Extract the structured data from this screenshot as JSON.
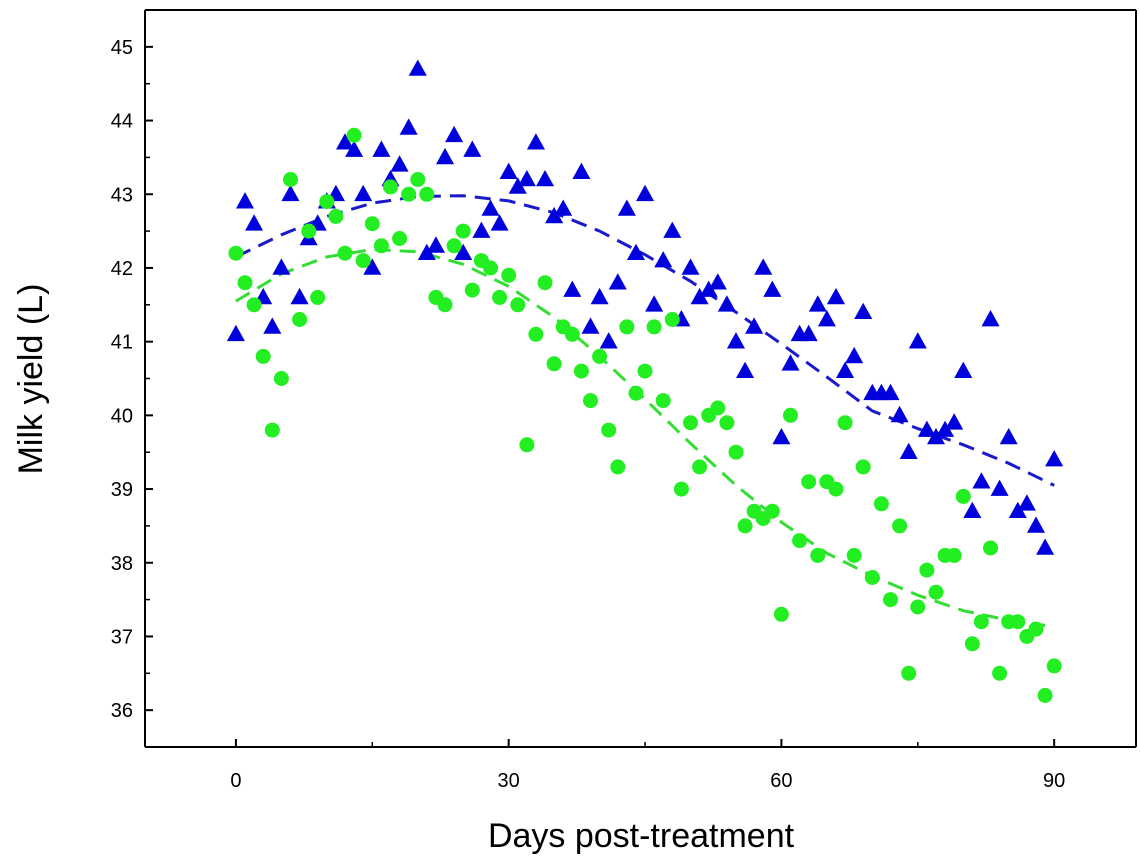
{
  "chart_data": {
    "type": "scatter",
    "xlabel": "Days post-treatment",
    "ylabel": "Milk yield (L)",
    "xlim": [
      -10,
      99
    ],
    "ylim": [
      35.5,
      45.5
    ],
    "xticks": [
      0,
      30,
      60,
      90
    ],
    "yticks": [
      36,
      37,
      38,
      39,
      40,
      41,
      42,
      43,
      44,
      45
    ],
    "grid": false,
    "legend": "none",
    "series": [
      {
        "marker": "triangle",
        "color": "#0000dd",
        "x": [
          0,
          1,
          2,
          3,
          4,
          5,
          6,
          7,
          8,
          9,
          10,
          11,
          12,
          13,
          14,
          15,
          16,
          17,
          18,
          19,
          20,
          21,
          22,
          23,
          24,
          25,
          26,
          27,
          28,
          29,
          30,
          31,
          32,
          33,
          34,
          35,
          36,
          37,
          38,
          39,
          40,
          41,
          42,
          43,
          44,
          45,
          46,
          47,
          48,
          49,
          50,
          51,
          52,
          53,
          54,
          55,
          56,
          57,
          58,
          59,
          60,
          61,
          62,
          63,
          64,
          65,
          66,
          67,
          68,
          69,
          70,
          71,
          72,
          73,
          74,
          75,
          76,
          77,
          78,
          79,
          80,
          81,
          82,
          83,
          84,
          85,
          86,
          87,
          88,
          89,
          90
        ],
        "y": [
          41.1,
          42.9,
          42.6,
          41.6,
          41.2,
          42.0,
          43.0,
          41.6,
          42.4,
          42.6,
          42.9,
          43.0,
          43.7,
          43.6,
          43.0,
          42.0,
          43.6,
          43.2,
          43.4,
          43.9,
          44.7,
          42.2,
          42.3,
          43.5,
          43.8,
          42.2,
          43.6,
          42.5,
          42.8,
          42.6,
          43.3,
          43.1,
          43.2,
          43.7,
          43.2,
          42.7,
          42.8,
          41.7,
          43.3,
          41.2,
          41.6,
          41.0,
          41.8,
          42.8,
          42.2,
          43.0,
          41.5,
          42.1,
          42.5,
          41.3,
          42.0,
          41.6,
          41.7,
          41.8,
          41.5,
          41.0,
          40.6,
          41.2,
          42.0,
          41.7,
          39.7,
          40.7,
          41.1,
          41.1,
          41.5,
          41.3,
          41.6,
          40.6,
          40.8,
          41.4,
          40.3,
          40.3,
          40.3,
          40.0,
          39.5,
          41.0,
          39.8,
          39.7,
          39.8,
          39.9,
          40.6,
          38.7,
          39.1,
          41.3,
          39.0,
          39.7,
          38.7,
          38.8,
          38.5,
          38.2,
          39.4
        ]
      },
      {
        "marker": "circle",
        "color": "#22ee22",
        "x": [
          0,
          1,
          2,
          3,
          4,
          5,
          6,
          7,
          8,
          9,
          10,
          11,
          12,
          13,
          14,
          15,
          16,
          17,
          18,
          19,
          20,
          21,
          22,
          23,
          24,
          25,
          26,
          27,
          28,
          29,
          30,
          31,
          32,
          33,
          34,
          35,
          36,
          37,
          38,
          39,
          40,
          41,
          42,
          43,
          44,
          45,
          46,
          47,
          48,
          49,
          50,
          51,
          52,
          53,
          54,
          55,
          56,
          57,
          58,
          59,
          60,
          61,
          62,
          63,
          64,
          65,
          66,
          67,
          68,
          69,
          70,
          71,
          72,
          73,
          74,
          75,
          76,
          77,
          78,
          79,
          80,
          81,
          82,
          83,
          84,
          85,
          86,
          87,
          88,
          89,
          90
        ],
        "y": [
          42.2,
          41.8,
          41.5,
          40.8,
          39.8,
          40.5,
          43.2,
          41.3,
          42.5,
          41.6,
          42.9,
          42.7,
          42.2,
          43.8,
          42.1,
          42.6,
          42.3,
          43.1,
          42.4,
          43.0,
          43.2,
          43.0,
          41.6,
          41.5,
          42.3,
          42.5,
          41.7,
          42.1,
          42.0,
          41.6,
          41.9,
          41.5,
          39.6,
          41.1,
          41.8,
          40.7,
          41.2,
          41.1,
          40.6,
          40.2,
          40.8,
          39.8,
          39.3,
          41.2,
          40.3,
          40.6,
          41.2,
          40.2,
          41.3,
          39.0,
          39.9,
          39.3,
          40.0,
          40.1,
          39.9,
          39.5,
          38.5,
          38.7,
          38.6,
          38.7,
          37.3,
          40.0,
          38.3,
          39.1,
          38.1,
          39.1,
          39.0,
          39.9,
          38.1,
          39.3,
          37.8,
          38.8,
          37.5,
          38.5,
          36.5,
          37.4,
          37.9,
          37.6,
          38.1,
          38.1,
          38.9,
          36.9,
          37.2,
          38.2,
          36.5,
          37.2,
          37.2,
          37.0,
          37.1,
          36.2,
          36.6
        ]
      }
    ],
    "fits": [
      {
        "style": "dashed",
        "color": "#1a1acc",
        "x": [
          0,
          5,
          10,
          15,
          20,
          25,
          30,
          35,
          40,
          45,
          50,
          55,
          60,
          65,
          70,
          75,
          80,
          85,
          90
        ],
        "y": [
          42.15,
          42.45,
          42.7,
          42.88,
          42.97,
          42.98,
          42.91,
          42.75,
          42.5,
          42.18,
          41.82,
          41.4,
          40.97,
          40.52,
          40.06,
          39.82,
          39.6,
          39.35,
          39.05
        ]
      },
      {
        "style": "dashed",
        "color": "#33dd33",
        "x": [
          0,
          5,
          10,
          15,
          20,
          25,
          30,
          35,
          40,
          45,
          50,
          55,
          60,
          65,
          70,
          75,
          80,
          85,
          89
        ],
        "y": [
          41.55,
          41.92,
          42.15,
          42.25,
          42.22,
          42.05,
          41.75,
          41.33,
          40.8,
          40.22,
          39.62,
          39.05,
          38.55,
          38.13,
          37.82,
          37.56,
          37.35,
          37.22,
          37.15
        ]
      }
    ]
  }
}
